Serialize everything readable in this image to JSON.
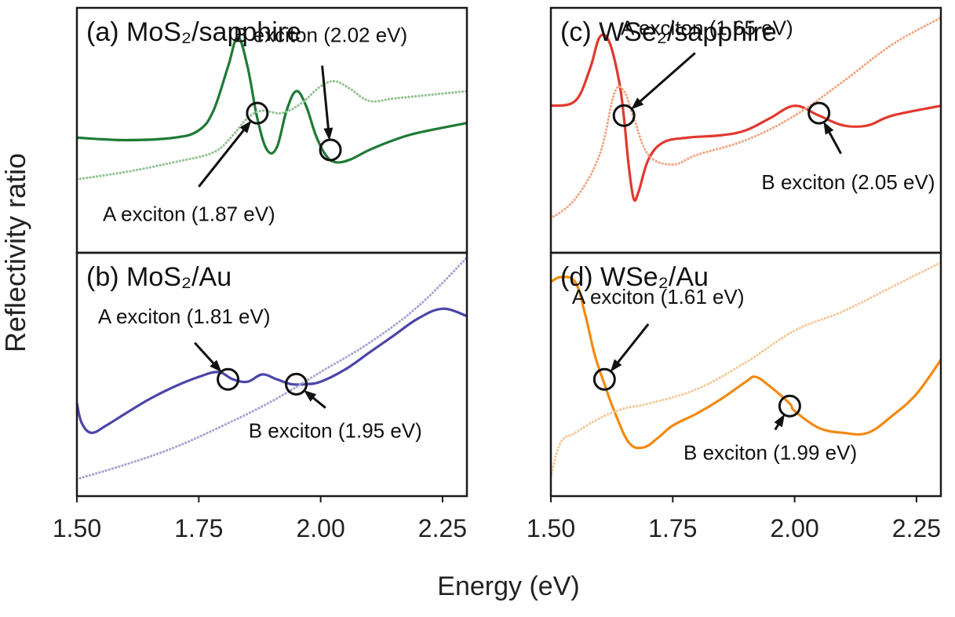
{
  "figure": {
    "ylabel": "Reflectivity ratio",
    "xlabel": "Energy (eV)"
  },
  "chart_data": [
    {
      "type": "line",
      "panel": "a",
      "title": "(a) MoS₂/sapphire",
      "xlim": [
        1.5,
        2.3
      ],
      "ylim": [
        0,
        1
      ],
      "xticks": [
        "1.50",
        "1.75",
        "2.00",
        "2.25"
      ],
      "colors": {
        "solid": "#1f7a36",
        "dotted": "#94c394"
      },
      "series": [
        {
          "style": "solid",
          "x": [
            1.5,
            1.6,
            1.7,
            1.75,
            1.78,
            1.81,
            1.83,
            1.85,
            1.87,
            1.89,
            1.91,
            1.93,
            1.95,
            1.97,
            1.99,
            2.01,
            2.03,
            2.06,
            2.1,
            2.15,
            2.2,
            2.3
          ],
          "y": [
            0.47,
            0.46,
            0.47,
            0.5,
            0.58,
            0.76,
            0.88,
            0.76,
            0.55,
            0.42,
            0.43,
            0.58,
            0.66,
            0.6,
            0.48,
            0.4,
            0.37,
            0.38,
            0.42,
            0.46,
            0.49,
            0.53
          ]
        },
        {
          "style": "dotted",
          "x": [
            1.5,
            1.6,
            1.7,
            1.78,
            1.82,
            1.85,
            1.88,
            1.92,
            1.96,
            2.0,
            2.03,
            2.06,
            2.1,
            2.15,
            2.2,
            2.3
          ],
          "y": [
            0.3,
            0.33,
            0.37,
            0.41,
            0.48,
            0.55,
            0.58,
            0.57,
            0.61,
            0.68,
            0.7,
            0.67,
            0.62,
            0.63,
            0.64,
            0.66
          ]
        }
      ],
      "annotations": [
        {
          "text": "B exciton (2.02 eV)",
          "x": 2.02,
          "y": 0.42,
          "tx": 2.0,
          "ty": 0.86
        },
        {
          "text": "A exciton (1.87 eV)",
          "x": 1.87,
          "y": 0.57,
          "tx": 1.73,
          "ty": 0.13
        }
      ]
    },
    {
      "type": "line",
      "panel": "b",
      "title": "(b) MoS₂/Au",
      "xlim": [
        1.5,
        2.3
      ],
      "ylim": [
        0,
        1
      ],
      "xticks": [
        "1.50",
        "1.75",
        "2.00",
        "2.25"
      ],
      "colors": {
        "solid": "#4b46a8",
        "dotted": "#a8a6d6"
      },
      "series": [
        {
          "style": "solid",
          "x": [
            1.5,
            1.51,
            1.53,
            1.56,
            1.6,
            1.65,
            1.7,
            1.75,
            1.79,
            1.82,
            1.85,
            1.88,
            1.91,
            1.94,
            1.97,
            2.0,
            2.05,
            2.1,
            2.15,
            2.2,
            2.25,
            2.3
          ],
          "y": [
            0.38,
            0.3,
            0.26,
            0.29,
            0.34,
            0.4,
            0.45,
            0.49,
            0.51,
            0.48,
            0.47,
            0.5,
            0.48,
            0.46,
            0.46,
            0.47,
            0.52,
            0.59,
            0.66,
            0.73,
            0.77,
            0.74
          ]
        },
        {
          "style": "dotted",
          "x": [
            1.5,
            1.6,
            1.7,
            1.8,
            1.9,
            2.0,
            2.1,
            2.2,
            2.3
          ],
          "y": [
            0.07,
            0.13,
            0.2,
            0.29,
            0.39,
            0.51,
            0.63,
            0.78,
            0.98
          ]
        }
      ],
      "annotations": [
        {
          "text": "A exciton (1.81 eV)",
          "x": 1.81,
          "y": 0.48,
          "tx": 1.72,
          "ty": 0.71
        },
        {
          "text": "B exciton (1.95 eV)",
          "x": 1.95,
          "y": 0.46,
          "tx": 2.03,
          "ty": 0.24
        }
      ]
    },
    {
      "type": "line",
      "panel": "c",
      "title": "(c) WSe₂/sapphire",
      "xlim": [
        1.5,
        2.3
      ],
      "ylim": [
        0,
        1
      ],
      "xticks": [
        "1.50",
        "1.75",
        "2.00",
        "2.25"
      ],
      "colors": {
        "solid": "#e2382e",
        "dotted": "#f2a886"
      },
      "series": [
        {
          "style": "solid",
          "x": [
            1.5,
            1.55,
            1.58,
            1.6,
            1.62,
            1.64,
            1.65,
            1.66,
            1.67,
            1.68,
            1.7,
            1.73,
            1.78,
            1.85,
            1.9,
            1.95,
            2.0,
            2.05,
            2.1,
            2.15,
            2.2,
            2.3
          ],
          "y": [
            0.6,
            0.62,
            0.75,
            0.88,
            0.86,
            0.7,
            0.55,
            0.35,
            0.22,
            0.25,
            0.38,
            0.45,
            0.47,
            0.48,
            0.5,
            0.55,
            0.6,
            0.56,
            0.52,
            0.52,
            0.56,
            0.6
          ]
        },
        {
          "style": "dotted",
          "x": [
            1.5,
            1.55,
            1.6,
            1.63,
            1.65,
            1.67,
            1.7,
            1.75,
            1.8,
            1.9,
            2.0,
            2.1,
            2.2,
            2.3
          ],
          "y": [
            0.14,
            0.22,
            0.4,
            0.65,
            0.66,
            0.55,
            0.4,
            0.36,
            0.4,
            0.46,
            0.56,
            0.7,
            0.85,
            0.96
          ]
        }
      ],
      "annotations": [
        {
          "text": "A exciton (1.65 eV)",
          "x": 1.65,
          "y": 0.56,
          "tx": 1.82,
          "ty": 0.89
        },
        {
          "text": "B exciton (2.05 eV)",
          "x": 2.05,
          "y": 0.57,
          "tx": 2.11,
          "ty": 0.26
        }
      ]
    },
    {
      "type": "line",
      "panel": "d",
      "title": "(d) WSe₂/Au",
      "xlim": [
        1.5,
        2.3
      ],
      "ylim": [
        0,
        1
      ],
      "xticks": [
        "1.50",
        "1.75",
        "2.00",
        "2.25"
      ],
      "colors": {
        "solid": "#f28a12",
        "dotted": "#f5c99a"
      },
      "series": [
        {
          "style": "solid",
          "x": [
            1.5,
            1.52,
            1.55,
            1.57,
            1.59,
            1.61,
            1.63,
            1.66,
            1.69,
            1.72,
            1.75,
            1.8,
            1.85,
            1.9,
            1.92,
            1.95,
            1.99,
            2.0,
            2.05,
            2.1,
            2.15,
            2.2,
            2.25,
            2.3
          ],
          "y": [
            0.88,
            0.9,
            0.88,
            0.75,
            0.58,
            0.46,
            0.35,
            0.22,
            0.2,
            0.24,
            0.29,
            0.34,
            0.4,
            0.47,
            0.49,
            0.45,
            0.38,
            0.35,
            0.28,
            0.26,
            0.26,
            0.33,
            0.42,
            0.56
          ]
        },
        {
          "style": "dotted",
          "x": [
            1.5,
            1.52,
            1.55,
            1.6,
            1.65,
            1.7,
            1.8,
            1.9,
            2.0,
            2.1,
            2.2,
            2.3
          ],
          "y": [
            0.08,
            0.22,
            0.26,
            0.32,
            0.36,
            0.38,
            0.44,
            0.55,
            0.68,
            0.76,
            0.86,
            0.96
          ]
        }
      ],
      "annotations": [
        {
          "text": "A exciton (1.61 eV)",
          "x": 1.61,
          "y": 0.48,
          "tx": 1.72,
          "ty": 0.79
        },
        {
          "text": "B exciton (1.99 eV)",
          "x": 1.99,
          "y": 0.37,
          "tx": 1.95,
          "ty": 0.15
        }
      ]
    }
  ]
}
